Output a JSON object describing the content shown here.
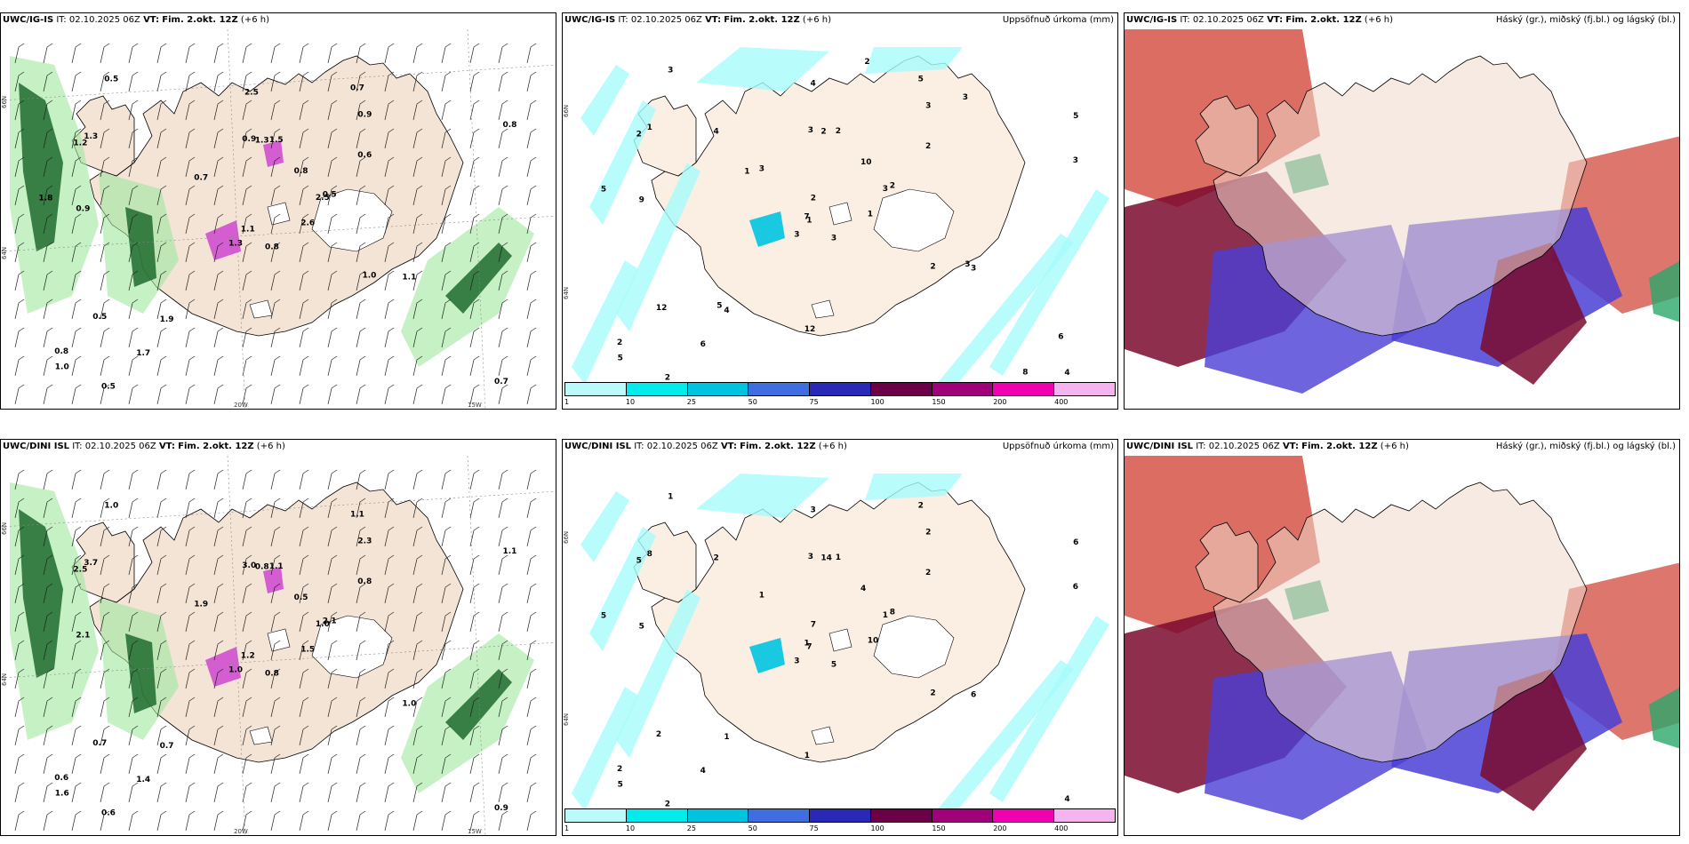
{
  "panels": [
    {
      "id": "p1",
      "model": "UWC/IG-IS",
      "init": "IT: 02.10.2025 06Z",
      "valid_prefix": "VT:",
      "valid": "Fim. 2.okt. 12Z",
      "lead": "(+6 h)",
      "type": "wind",
      "right_title": ""
    },
    {
      "id": "p2",
      "model": "UWC/IG-IS",
      "init": "IT: 02.10.2025 06Z",
      "valid_prefix": "VT:",
      "valid": "Fim. 2.okt. 12Z",
      "lead": "(+6 h)",
      "type": "precip",
      "right_title": "Uppsöfnuð úrkoma (mm)"
    },
    {
      "id": "p3",
      "model": "UWC/IG-IS",
      "init": "IT: 02.10.2025 06Z",
      "valid_prefix": "VT:",
      "valid": "Fim. 2.okt. 12Z",
      "lead": "(+6 h)",
      "type": "cloud",
      "right_title": "Háský (gr.), miðský (fj.bl.) og lágský (bl.)"
    },
    {
      "id": "p4",
      "model": "UWC/DINI ISL",
      "init": "IT: 02.10.2025 06Z",
      "valid_prefix": "VT:",
      "valid": "Fim. 2.okt. 12Z",
      "lead": "(+6 h)",
      "type": "wind",
      "right_title": ""
    },
    {
      "id": "p5",
      "model": "UWC/DINI ISL",
      "init": "IT: 02.10.2025 06Z",
      "valid_prefix": "VT:",
      "valid": "Fim. 2.okt. 12Z",
      "lead": "(+6 h)",
      "type": "precip",
      "right_title": "Uppsöfnuð úrkoma (mm)"
    },
    {
      "id": "p6",
      "model": "UWC/DINI ISL",
      "init": "IT: 02.10.2025 06Z",
      "valid_prefix": "VT:",
      "valid": "Fim. 2.okt. 12Z",
      "lead": "(+6 h)",
      "type": "cloud",
      "right_title": "Háský (gr.), miðský (fj.bl.) og lágský (bl.)"
    }
  ],
  "grid_labels": {
    "lat_66": "66N",
    "lat_64": "64N",
    "lon_20": "20W",
    "lon_15": "15W",
    "lon_25": "25W"
  },
  "legend": {
    "labels": [
      "1",
      "10",
      "25",
      "50",
      "75",
      "100",
      "150",
      "200",
      "400"
    ],
    "colors": [
      "#b9fbfb",
      "#00ecec",
      "#00c3e0",
      "#3f6ee0",
      "#2929b8",
      "#6b0048",
      "#a0007a",
      "#f000b0",
      "#f5b3f0"
    ]
  },
  "wind_numbers_top": [
    "0.8",
    "1.2",
    "1.1",
    "0.8",
    "2.5",
    "1.9",
    "0.7",
    "1.5",
    "0.9",
    "2.6",
    "0.5",
    "0.7",
    "0.9",
    "0.8",
    "1.3",
    "0.6",
    "0.5",
    "0.9",
    "0.8",
    "0.5",
    "0.7",
    "1.0",
    "1.7",
    "1.3",
    "0.5",
    "1.1",
    "1.3",
    "2.5",
    "1.8",
    "1.0"
  ],
  "wind_numbers_bottom": [
    "0.8",
    "2.5",
    "1.2",
    "0.6",
    "1.0",
    "0.7",
    "1.1",
    "1.1",
    "2.3",
    "1.5",
    "1.0",
    "0.9",
    "2.1",
    "1.1",
    "1.0",
    "0.8",
    "0.6",
    "3.0",
    "0.5",
    "0.7",
    "1.9",
    "1.6",
    "1.4",
    "0.8",
    "2.1",
    "1.0",
    "3.7"
  ],
  "precip_numbers_top": [
    "3",
    "2",
    "1",
    "2",
    "3",
    "4",
    "5",
    "2",
    "3",
    "1",
    "3",
    "4",
    "9",
    "5",
    "3",
    "2",
    "2",
    "3",
    "10",
    "12",
    "3",
    "5",
    "6",
    "2",
    "2",
    "3",
    "1",
    "4",
    "5",
    "2",
    "3",
    "7",
    "12",
    "2",
    "4",
    "3",
    "5",
    "8",
    "6",
    "3",
    "2",
    "1"
  ],
  "precip_numbers_bottom": [
    "5",
    "5",
    "7",
    "2",
    "1",
    "1",
    "2",
    "1",
    "2",
    "10",
    "1",
    "4",
    "5",
    "6",
    "3",
    "2",
    "2",
    "3",
    "4",
    "2",
    "1",
    "5",
    "4",
    "14",
    "8",
    "6",
    "8",
    "3",
    "5",
    "2",
    "6",
    "1",
    "1",
    "7",
    "2"
  ]
}
